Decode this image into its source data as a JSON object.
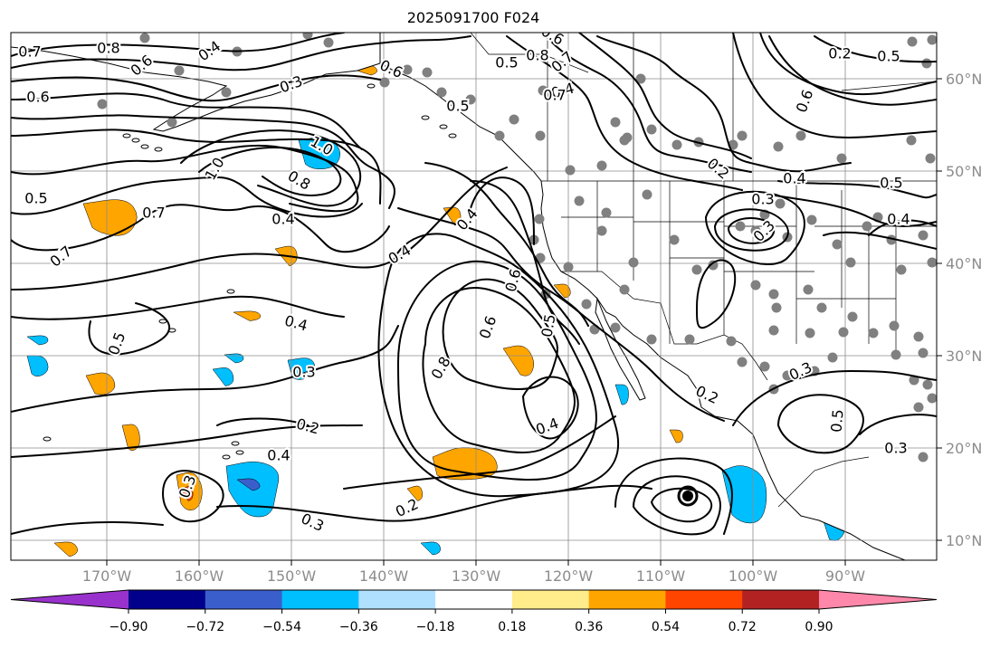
{
  "title": "2025091700 F024",
  "map": {
    "lon_labels": [
      "170°W",
      "160°W",
      "150°W",
      "140°W",
      "130°W",
      "120°W",
      "110°W",
      "100°W",
      "90°W"
    ],
    "lat_labels": [
      "60°N",
      "50°N",
      "40°N",
      "30°N",
      "20°N",
      "10°N"
    ],
    "label_color": "#8c8c8c",
    "land_mask_color": "#ffffff",
    "station_dot_color": "#808080",
    "contour_color": "#000000",
    "grid_color": "#8c8c8c"
  },
  "contour_labels": [
    {
      "text": "0.7"
    },
    {
      "text": "0.8"
    },
    {
      "text": "0.6"
    },
    {
      "text": "0.4"
    },
    {
      "text": "0.3"
    },
    {
      "text": "0.6"
    },
    {
      "text": "0.5"
    },
    {
      "text": "0.6"
    },
    {
      "text": "0.4"
    },
    {
      "text": "0.8"
    },
    {
      "text": "0.7"
    },
    {
      "text": "0.6"
    },
    {
      "text": "0.5"
    },
    {
      "text": "0.6"
    },
    {
      "text": "1.0"
    },
    {
      "text": "1.0"
    },
    {
      "text": "0.8"
    },
    {
      "text": "0.5"
    },
    {
      "text": "0.7"
    },
    {
      "text": "0.4"
    },
    {
      "text": "0.7"
    },
    {
      "text": "0.4"
    },
    {
      "text": "0.4"
    },
    {
      "text": "0.2"
    },
    {
      "text": "0.4"
    },
    {
      "text": "0.3"
    },
    {
      "text": "0.5"
    },
    {
      "text": "0.4"
    },
    {
      "text": "0.6"
    },
    {
      "text": "0.5"
    },
    {
      "text": "0.6"
    },
    {
      "text": "0.8"
    },
    {
      "text": "0.7"
    },
    {
      "text": "0.5"
    },
    {
      "text": "0.3"
    },
    {
      "text": "0.4"
    },
    {
      "text": "0.5"
    },
    {
      "text": "0.2"
    },
    {
      "text": "0.4"
    },
    {
      "text": "0.3"
    },
    {
      "text": "0.2"
    },
    {
      "text": "0.3"
    },
    {
      "text": "0.4"
    },
    {
      "text": "0.3"
    },
    {
      "text": "0.2"
    },
    {
      "text": "0.2"
    },
    {
      "text": "0.3"
    },
    {
      "text": "0.5"
    },
    {
      "text": "0.3"
    }
  ],
  "colorbar": {
    "segments": [
      {
        "color": "#9932cc"
      },
      {
        "color": "#00008b"
      },
      {
        "color": "#3a5fcd"
      },
      {
        "color": "#00bfff"
      },
      {
        "color": "#b0e0ff"
      },
      {
        "color": "#ffffff"
      },
      {
        "color": "#ffec8b"
      },
      {
        "color": "#ffa500"
      },
      {
        "color": "#ff4500"
      },
      {
        "color": "#b22222"
      },
      {
        "color": "#ff88aa"
      }
    ],
    "tick_labels": [
      "−0.90",
      "−0.72",
      "−0.54",
      "−0.36",
      "−0.18",
      "0.18",
      "0.36",
      "0.54",
      "0.72",
      "0.90"
    ]
  }
}
